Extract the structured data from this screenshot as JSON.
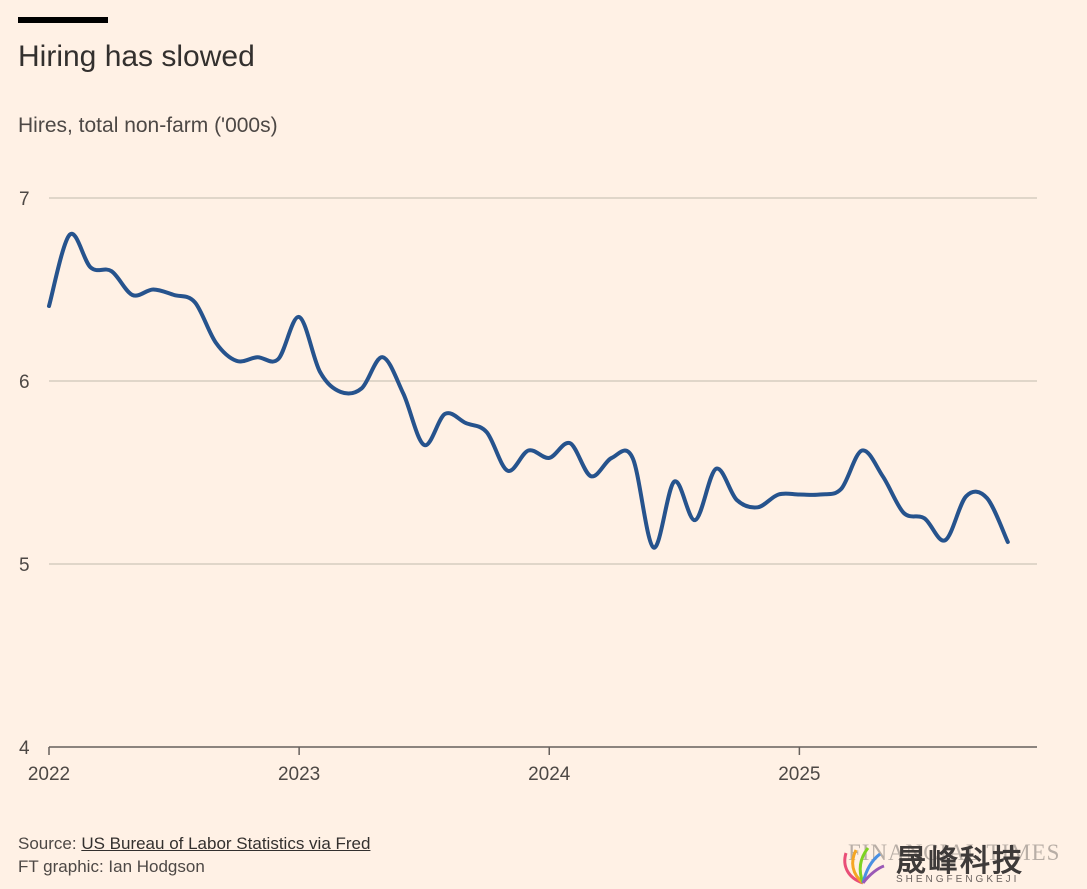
{
  "header": {
    "title": "Hiring has slowed",
    "subtitle": "Hires, total non-farm ('000s)"
  },
  "footer": {
    "source_prefix": "Source: ",
    "source_link": "US Bureau of Labor Statistics via Fred",
    "credit": "FT graphic: Ian Hodgson"
  },
  "watermark": {
    "english": "FINANCIAL TIMES",
    "chinese": "晟峰科技",
    "pinyin": "SHENGFENGKEJI"
  },
  "colors": {
    "background": "#FFF1E5",
    "line": "#26538D",
    "grid": "#CEC6B9",
    "axis": "#66605C",
    "text": "#33302E"
  },
  "chart_data": {
    "type": "line",
    "title": "Hiring has slowed",
    "ylabel": "Hires, total non-farm ('000s)",
    "xlabel": "",
    "ylim": [
      4,
      7
    ],
    "yticks": [
      "7",
      "6",
      "5",
      "4"
    ],
    "xlim": [
      2022.0,
      2025.95
    ],
    "xticks": [
      "2022",
      "2023",
      "2024",
      "2025"
    ],
    "grid": true,
    "series": [
      {
        "name": "Hires",
        "x": [
          2022.0,
          2022.0833,
          2022.1667,
          2022.25,
          2022.3333,
          2022.4167,
          2022.5,
          2022.5833,
          2022.6667,
          2022.75,
          2022.8333,
          2022.9167,
          2023.0,
          2023.0833,
          2023.1667,
          2023.25,
          2023.3333,
          2023.4167,
          2023.5,
          2023.5833,
          2023.6667,
          2023.75,
          2023.8333,
          2023.9167,
          2024.0,
          2024.0833,
          2024.1667,
          2024.25,
          2024.3333,
          2024.4167,
          2024.5,
          2024.5833,
          2024.6667,
          2024.75,
          2024.8333,
          2024.9167,
          2025.0,
          2025.0833,
          2025.1667,
          2025.25,
          2025.3333,
          2025.4167,
          2025.5,
          2025.5833,
          2025.6667,
          2025.75,
          2025.8333
        ],
        "values": [
          6.41,
          6.8,
          6.62,
          6.6,
          6.47,
          6.5,
          6.47,
          6.43,
          6.21,
          6.11,
          6.13,
          6.12,
          6.35,
          6.05,
          5.94,
          5.96,
          6.13,
          5.93,
          5.65,
          5.82,
          5.77,
          5.72,
          5.51,
          5.62,
          5.58,
          5.66,
          5.48,
          5.58,
          5.58,
          5.09,
          5.45,
          5.24,
          5.52,
          5.35,
          5.31,
          5.38,
          5.38,
          5.38,
          5.41,
          5.62,
          5.48,
          5.28,
          5.25,
          5.13,
          5.37,
          5.36,
          5.12
        ]
      }
    ]
  }
}
